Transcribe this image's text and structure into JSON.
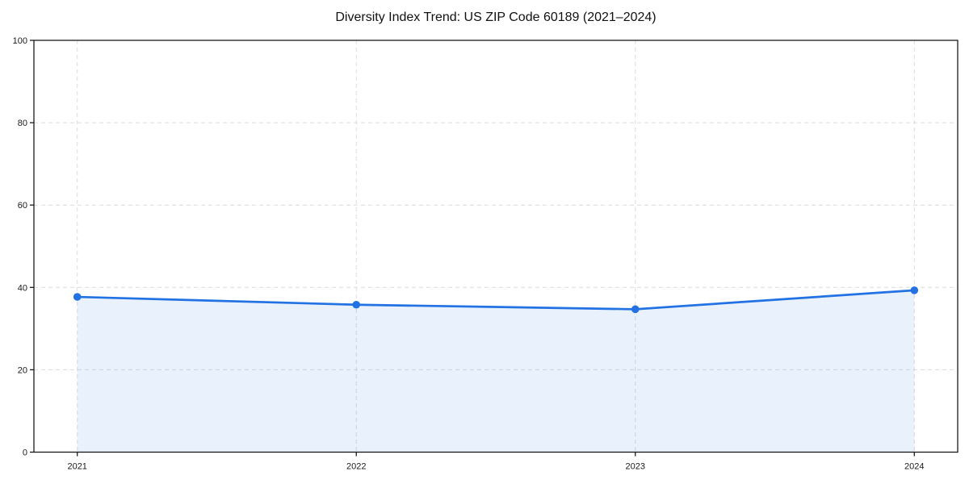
{
  "chart_data": {
    "type": "area",
    "title": "Diversity Index Trend: US ZIP Code 60189 (2021–2024)",
    "categories": [
      "2021",
      "2022",
      "2023",
      "2024"
    ],
    "series": [
      {
        "name": "Diversity Index",
        "values": [
          37.7,
          35.8,
          34.7,
          39.3
        ]
      }
    ],
    "xlabel": "",
    "ylabel": "",
    "ylim": [
      0,
      100
    ],
    "yticks": [
      0,
      20,
      40,
      60,
      80,
      100
    ],
    "grid": true,
    "grid_style": "dashed",
    "legend_position": "none",
    "colors": {
      "line": "#2272e3",
      "marker": "#2272e3",
      "fill": "#2272e3",
      "fill_opacity": 0.1,
      "grid": "#dcdcdc",
      "axis": "#1a1a1a",
      "background": "#ffffff",
      "title_text": "#111111",
      "tick_text": "#1a1a1a"
    }
  }
}
